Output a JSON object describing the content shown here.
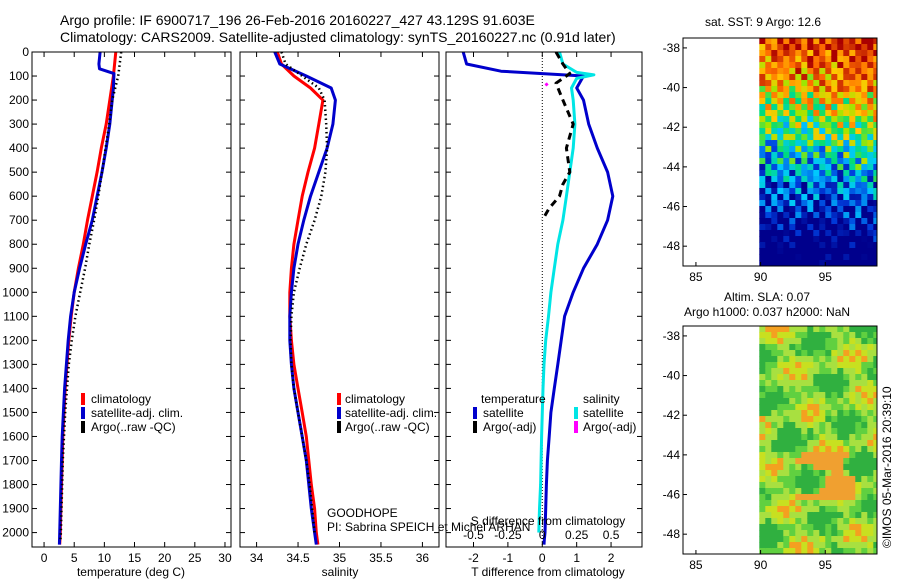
{
  "header": {
    "title_line1": "Argo profile: IF 6900717_196 26-Feb-2016 20160227_427 43.129S 91.603E",
    "title_line2": "Climatology: CARS2009. Satellite-adjusted climatology: synTS_20160227.nc (0.91d later)"
  },
  "chart_data": [
    {
      "type": "line",
      "id": "temperature",
      "xlabel": "temperature (deg C)",
      "ylabel": "",
      "xlim": [
        -2,
        31
      ],
      "ylim": [
        2060,
        0
      ],
      "xticks": [
        0,
        5,
        10,
        15,
        20,
        25,
        30
      ],
      "yticks": [
        0,
        100,
        200,
        300,
        400,
        500,
        600,
        700,
        800,
        900,
        1000,
        1100,
        1200,
        1300,
        1400,
        1500,
        1600,
        1700,
        1800,
        1900,
        2000
      ],
      "legend": [
        "climatology",
        "satellite-adj. clim.",
        "Argo(..raw -QC)"
      ],
      "series": [
        {
          "name": "climatology",
          "color": "#ff0000",
          "style": "solid",
          "x": [
            11.9,
            11.5,
            10.9,
            10.3,
            9.5,
            8.8,
            8.0,
            7.2,
            6.5,
            5.7,
            5.0,
            4.5,
            4.1,
            3.8,
            3.5,
            3.3,
            3.1,
            3.0,
            2.9,
            2.8,
            2.7,
            2.6
          ],
          "y": [
            0,
            100,
            200,
            300,
            400,
            500,
            600,
            700,
            800,
            900,
            1000,
            1100,
            1200,
            1300,
            1400,
            1500,
            1600,
            1700,
            1800,
            1900,
            2000,
            2050
          ]
        },
        {
          "name": "satellite-adj. clim.",
          "color": "#0000cc",
          "style": "solid",
          "x": [
            9.3,
            9.1,
            9.2,
            11.6,
            11.5,
            11.3,
            10.9,
            10.3,
            9.6,
            8.8,
            8.0,
            6.9,
            5.9,
            5.0,
            4.4,
            4.0,
            3.7,
            3.4,
            3.2,
            3.0,
            2.9,
            2.8,
            2.7,
            2.6,
            2.55
          ],
          "y": [
            0,
            50,
            70,
            90,
            150,
            200,
            300,
            400,
            500,
            600,
            700,
            800,
            900,
            1000,
            1100,
            1200,
            1300,
            1400,
            1500,
            1600,
            1700,
            1800,
            1900,
            2000,
            2050
          ]
        },
        {
          "name": "Argo(..raw -QC)",
          "color": "#000000",
          "style": "dotted",
          "x": [
            12.8,
            12.3,
            11.3,
            10.8,
            10.2,
            9.6,
            9.0,
            8.3,
            7.5,
            6.8,
            6.0,
            5.2,
            4.6,
            4.1,
            3.8,
            3.5,
            3.3,
            3.1,
            3.0,
            2.9,
            2.8,
            2.7
          ],
          "y": [
            0,
            100,
            200,
            300,
            400,
            500,
            600,
            700,
            800,
            900,
            1000,
            1100,
            1200,
            1300,
            1400,
            1500,
            1600,
            1700,
            1800,
            1900,
            2000,
            2040
          ]
        }
      ]
    },
    {
      "type": "line",
      "id": "salinity",
      "xlabel": "salinity",
      "xlim": [
        33.8,
        36.2
      ],
      "ylim": [
        2060,
        0
      ],
      "xticks": [
        34,
        34.5,
        35,
        35.5,
        36
      ],
      "legend": [
        "climatology",
        "satellite-adj. clim.",
        "Argo(..raw -QC)"
      ],
      "series": [
        {
          "name": "climatology",
          "color": "#ff0000",
          "style": "solid",
          "x": [
            34.25,
            34.3,
            34.45,
            34.65,
            34.8,
            34.75,
            34.7,
            34.62,
            34.55,
            34.5,
            34.45,
            34.42,
            34.4,
            34.4,
            34.42,
            34.45,
            34.5,
            34.55,
            34.6,
            34.63,
            34.66,
            34.7,
            34.72,
            34.74
          ],
          "y": [
            0,
            50,
            100,
            150,
            200,
            300,
            400,
            500,
            600,
            700,
            800,
            900,
            1000,
            1100,
            1200,
            1300,
            1400,
            1500,
            1600,
            1700,
            1800,
            1900,
            2000,
            2050
          ]
        },
        {
          "name": "satellite-adj. clim.",
          "color": "#0000cc",
          "style": "solid",
          "x": [
            34.22,
            34.28,
            34.6,
            34.9,
            34.95,
            34.92,
            34.85,
            34.75,
            34.65,
            34.57,
            34.5,
            34.45,
            34.42,
            34.4,
            34.4,
            34.42,
            34.45,
            34.5,
            34.55,
            34.6,
            34.63,
            34.66,
            34.7,
            34.72
          ],
          "y": [
            0,
            50,
            100,
            150,
            200,
            300,
            400,
            500,
            600,
            700,
            800,
            900,
            1000,
            1100,
            1200,
            1300,
            1400,
            1500,
            1600,
            1700,
            1800,
            1900,
            2000,
            2050
          ]
        },
        {
          "name": "Argo(..raw -QC)",
          "color": "#000000",
          "style": "dotted",
          "x": [
            34.3,
            34.35,
            34.55,
            34.75,
            34.82,
            34.84,
            34.85,
            34.83,
            34.78,
            34.7,
            34.6,
            34.52,
            34.45,
            34.42,
            34.41,
            34.42,
            34.45,
            34.5,
            34.55,
            34.6,
            34.64,
            34.67,
            34.7
          ],
          "y": [
            0,
            50,
            100,
            150,
            200,
            300,
            400,
            500,
            600,
            700,
            800,
            900,
            1000,
            1100,
            1200,
            1300,
            1400,
            1500,
            1600,
            1700,
            1800,
            1900,
            2000
          ]
        }
      ],
      "annotation_lines": [
        "GOODHOPE",
        "PI: Sabrina SPEICH et Michel ARHAN"
      ]
    },
    {
      "type": "line",
      "id": "difference",
      "xlabel": "T difference from climatology",
      "xlabel_top": "S difference from climatology",
      "xlim": [
        -2.8,
        2.9
      ],
      "ylim": [
        2060,
        0
      ],
      "xticks": [
        -2,
        -1,
        0,
        1,
        2
      ],
      "xticks_s": [
        "-0.5",
        "-0.25",
        "0",
        "0.25",
        "0.5"
      ],
      "legend_title_t": "temperature",
      "legend_title_s": "salinity",
      "legend_t": [
        "satellite",
        "Argo(-adj)"
      ],
      "legend_s": [
        "satellite",
        "Argo(-adj)"
      ],
      "series": [
        {
          "name": "T satellite",
          "color": "#0000cc",
          "style": "solid",
          "x": [
            -2.3,
            -2.2,
            -1.2,
            1.2,
            1.0,
            1.2,
            1.35,
            1.6,
            1.9,
            2.05,
            1.9,
            1.6,
            1.2,
            0.9,
            0.65,
            0.55,
            0.45,
            0.35,
            0.25,
            0.2,
            0.15,
            0.12,
            0.1,
            0.08,
            0.06,
            0.05
          ],
          "y": [
            0,
            50,
            80,
            100,
            150,
            200,
            300,
            400,
            500,
            600,
            700,
            800,
            900,
            1000,
            1100,
            1200,
            1300,
            1400,
            1500,
            1600,
            1700,
            1800,
            1900,
            2000,
            2030,
            2050
          ]
        },
        {
          "name": "S satellite",
          "color": "#00e5e5",
          "style": "solid",
          "x": [
            0.5,
            0.6,
            1.0,
            1.5,
            1.0,
            0.85,
            0.9,
            0.95,
            0.9,
            0.8,
            0.7,
            0.6,
            0.45,
            0.35,
            0.25,
            0.18,
            0.1,
            0.05,
            0.02,
            0.0,
            -0.02,
            -0.05,
            -0.08,
            -0.1
          ],
          "y": [
            0,
            50,
            85,
            95,
            110,
            150,
            200,
            300,
            400,
            500,
            600,
            700,
            800,
            900,
            1000,
            1100,
            1200,
            1300,
            1400,
            1500,
            1600,
            1800,
            1900,
            2000
          ]
        },
        {
          "name": "T Argo(-adj)",
          "color": "#000000",
          "style": "dashed",
          "x": [
            0.4,
            0.6,
            0.8,
            0.4,
            0.6,
            0.9,
            0.7,
            0.8,
            0.6,
            0.5,
            0.2,
            0.0
          ],
          "y": [
            0,
            50,
            90,
            130,
            200,
            300,
            400,
            500,
            550,
            600,
            650,
            700
          ]
        },
        {
          "name": "S Argo(-adj)",
          "color": "#ff00ff",
          "style": "solid",
          "x": [
            0.1,
            0.15
          ],
          "y": [
            130,
            140
          ]
        }
      ]
    },
    {
      "type": "heatmap",
      "id": "sst_map",
      "title": "sat. SST: 9 Argo: 12.6",
      "xlim": [
        84,
        99
      ],
      "ylim": [
        -49,
        -37.5
      ],
      "xticks": [
        85,
        90,
        95
      ],
      "yticks": [
        -38,
        -40,
        -42,
        -44,
        -46,
        -48
      ]
    },
    {
      "type": "heatmap",
      "id": "sla_map",
      "title_line1": "Altim. SLA: 0.07",
      "title_line2": "Argo h1000: 0.037 h2000: NaN",
      "xlim": [
        84,
        99
      ],
      "ylim": [
        -49,
        -37.5
      ],
      "xticks": [
        85,
        90,
        95
      ],
      "yticks": [
        -38,
        -40,
        -42,
        -44,
        -46,
        -48
      ]
    }
  ],
  "credit": "©IMOS 05-Mar-2016 20:39:10"
}
